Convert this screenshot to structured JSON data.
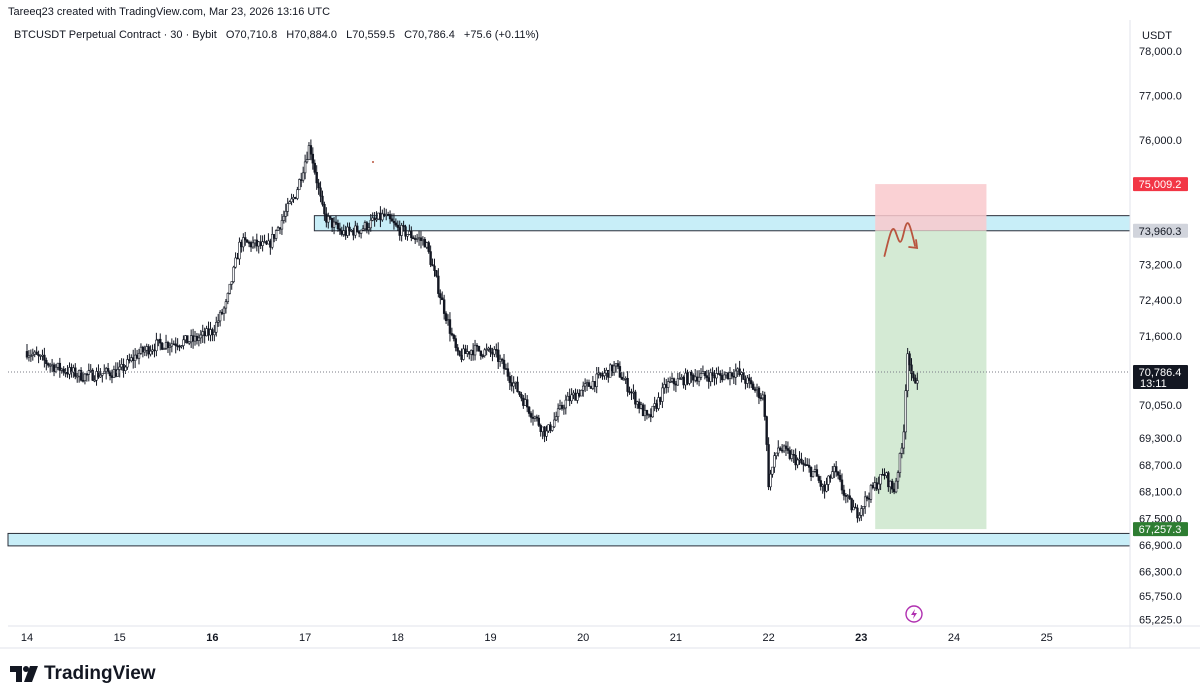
{
  "caption": "Tareeq23 created with TradingView.com, Mar 23, 2026 13:16 UTC",
  "header": {
    "symbol": "BTCUSDT Perpetual Contract · 30 · Bybit",
    "open": "O70,710.8",
    "high": "H70,884.0",
    "low": "L70,559.5",
    "close": "C70,786.4",
    "change": "+75.6 (+0.11%)"
  },
  "currency": "USDT",
  "brand": "TradingView",
  "colors": {
    "zone_fill": "#c8eef8",
    "stop_fill": "#f9c9cc",
    "target_fill": "#cfe8cf",
    "stop_badge": "#f23645",
    "target_badge": "#2e7d32",
    "price_badge": "#131722",
    "marker": "#b9553f"
  },
  "chart_data": {
    "type": "candlestick",
    "ylim": [
      65225,
      78700
    ],
    "y_ticks": [
      "78,000.0",
      "77,000.0",
      "76,000.0",
      "73,200.0",
      "72,400.0",
      "71,600.0",
      "70,050.0",
      "69,300.0",
      "68,700.0",
      "68,100.0",
      "67,500.0",
      "66,900.0",
      "66,300.0",
      "65,750.0",
      "65,225.0"
    ],
    "x_ticks": [
      {
        "label": "14",
        "bold": false
      },
      {
        "label": "15",
        "bold": false
      },
      {
        "label": "16",
        "bold": true
      },
      {
        "label": "17",
        "bold": false
      },
      {
        "label": "18",
        "bold": false
      },
      {
        "label": "19",
        "bold": false
      },
      {
        "label": "20",
        "bold": false
      },
      {
        "label": "21",
        "bold": false
      },
      {
        "label": "22",
        "bold": false
      },
      {
        "label": "23",
        "bold": true
      },
      {
        "label": "24",
        "bold": false
      },
      {
        "label": "25",
        "bold": false
      }
    ],
    "price_path": [
      [
        14.0,
        71250
      ],
      [
        14.3,
        70900
      ],
      [
        14.6,
        70700
      ],
      [
        15.0,
        70800
      ],
      [
        15.2,
        71200
      ],
      [
        15.4,
        71400
      ],
      [
        15.8,
        71500
      ],
      [
        16.0,
        71700
      ],
      [
        16.15,
        72300
      ],
      [
        16.3,
        73700
      ],
      [
        16.6,
        73600
      ],
      [
        16.9,
        74800
      ],
      [
        17.05,
        75900
      ],
      [
        17.2,
        74300
      ],
      [
        17.4,
        73900
      ],
      [
        17.6,
        74000
      ],
      [
        17.85,
        74300
      ],
      [
        18.0,
        74000
      ],
      [
        18.3,
        73700
      ],
      [
        18.5,
        72200
      ],
      [
        18.65,
        71100
      ],
      [
        18.8,
        71300
      ],
      [
        19.05,
        71200
      ],
      [
        19.2,
        70700
      ],
      [
        19.4,
        70000
      ],
      [
        19.6,
        69400
      ],
      [
        19.8,
        70100
      ],
      [
        20.0,
        70400
      ],
      [
        20.2,
        70700
      ],
      [
        20.35,
        70900
      ],
      [
        20.5,
        70400
      ],
      [
        20.7,
        69700
      ],
      [
        20.9,
        70500
      ],
      [
        21.2,
        70700
      ],
      [
        21.5,
        70700
      ],
      [
        21.65,
        70800
      ],
      [
        21.8,
        70500
      ],
      [
        21.95,
        70200
      ],
      [
        22.0,
        68300
      ],
      [
        22.1,
        69100
      ],
      [
        22.3,
        68800
      ],
      [
        22.5,
        68500
      ],
      [
        22.6,
        68100
      ],
      [
        22.7,
        68600
      ],
      [
        22.85,
        67900
      ],
      [
        22.95,
        67600
      ],
      [
        23.1,
        68100
      ],
      [
        23.25,
        68500
      ],
      [
        23.35,
        68100
      ],
      [
        23.45,
        69200
      ],
      [
        23.5,
        71300
      ],
      [
        23.55,
        70500
      ],
      [
        23.62,
        70786
      ]
    ],
    "current_price": {
      "value": 70786.4,
      "label": "70,786.4",
      "countdown": "13:11"
    },
    "zones": [
      {
        "from": 73960.3,
        "to": 74300
      },
      {
        "from": 66880,
        "to": 67160
      }
    ],
    "position": {
      "entry": 73960.3,
      "entry_label": "73,960.3",
      "stop": 75009.2,
      "stop_label": "75,009.2",
      "target": 67257.3,
      "target_label": "67,257.3",
      "x_start": 23.15,
      "x_end": 24.35
    }
  }
}
